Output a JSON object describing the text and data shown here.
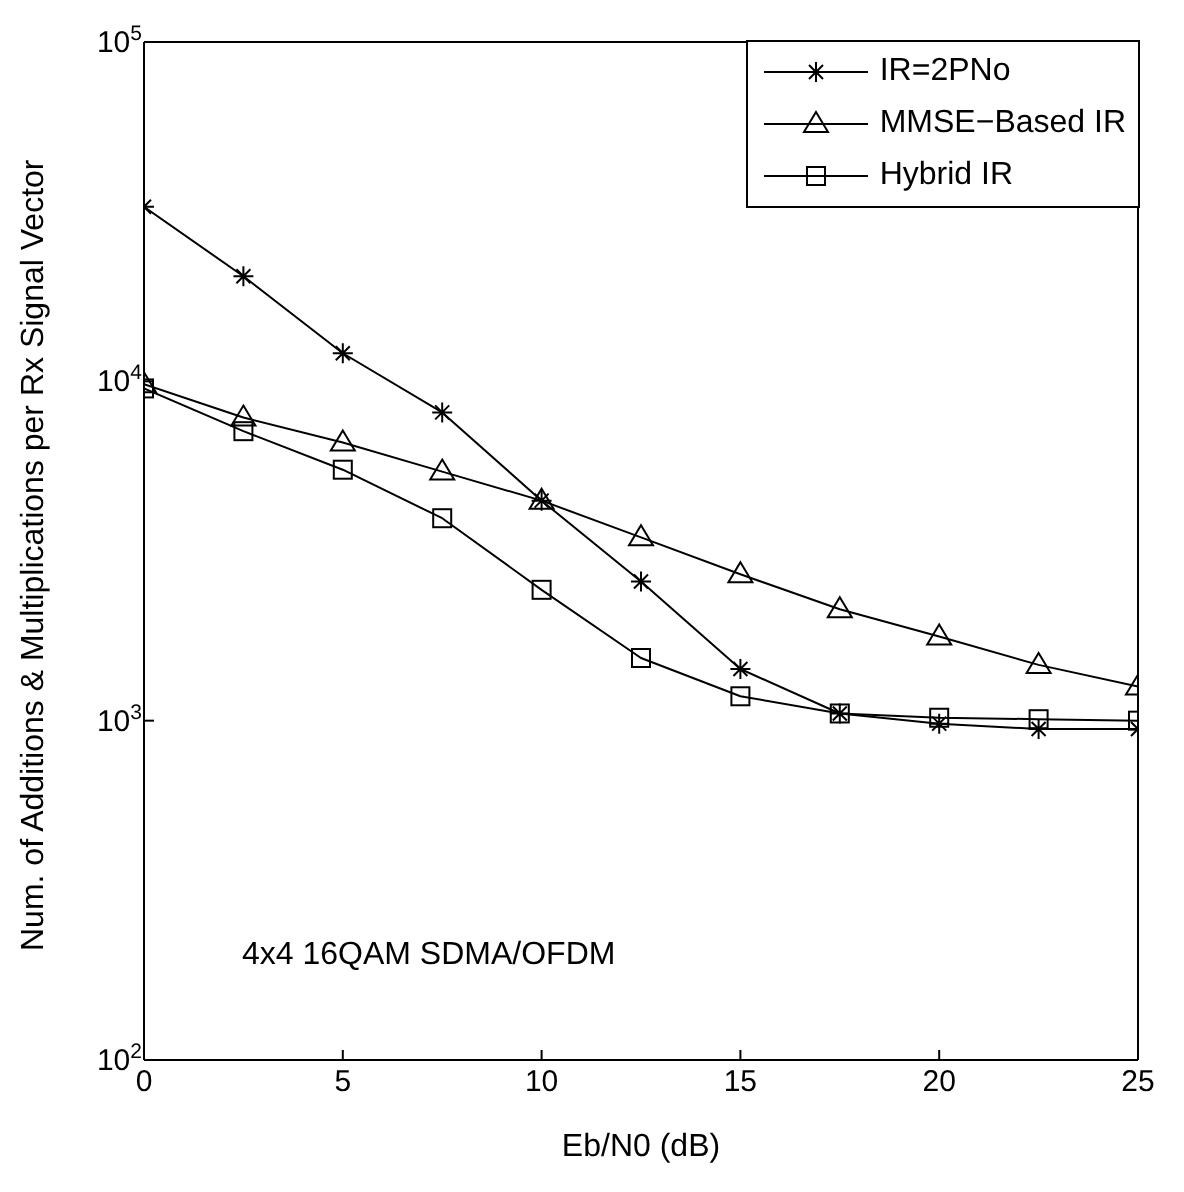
{
  "chart_data": {
    "type": "line",
    "xlabel": "Eb/N0 (dB)",
    "ylabel": "Num. of Additions & Multiplications per Rx Signal Vector",
    "annotations": [
      "4x4 16QAM SDMA/OFDM"
    ],
    "x": [
      0,
      2.5,
      5,
      7.5,
      10,
      12.5,
      15,
      17.5,
      20,
      22.5,
      25
    ],
    "log": "y",
    "legend": "top right",
    "line_style": "solid",
    "xlim": [
      0,
      25
    ],
    "xticks": [
      0,
      5,
      10,
      15,
      20,
      25
    ],
    "ylim": [
      100,
      100000
    ],
    "yticks": [
      {
        "value": 100,
        "label": "10$^{2}$"
      },
      {
        "value": 1000,
        "label": "10$^{3}$"
      },
      {
        "value": 10000,
        "label": "10$^{4}$"
      },
      {
        "value": 100000,
        "label": "10$^{5}$"
      }
    ],
    "series": [
      {
        "name": "IR=2PNo",
        "color": "#000000",
        "marker": "cross",
        "values": [
          32700,
          20400,
          12100,
          8100,
          4450,
          2570,
          1420,
          1050,
          980,
          945,
          945
        ]
      },
      {
        "name": "MMSE−Based IR",
        "color": "#000000",
        "marker": "triangle",
        "values": [
          9800,
          7820,
          6600,
          5420,
          4450,
          3470,
          2700,
          2130,
          1770,
          1460,
          1260
        ]
      },
      {
        "name": "Hybrid IR",
        "color": "#000000",
        "marker": "square",
        "values": [
          9530,
          7130,
          5490,
          3950,
          2430,
          1530,
          1180,
          1050,
          1020,
          1010,
          1000
        ]
      }
    ]
  }
}
